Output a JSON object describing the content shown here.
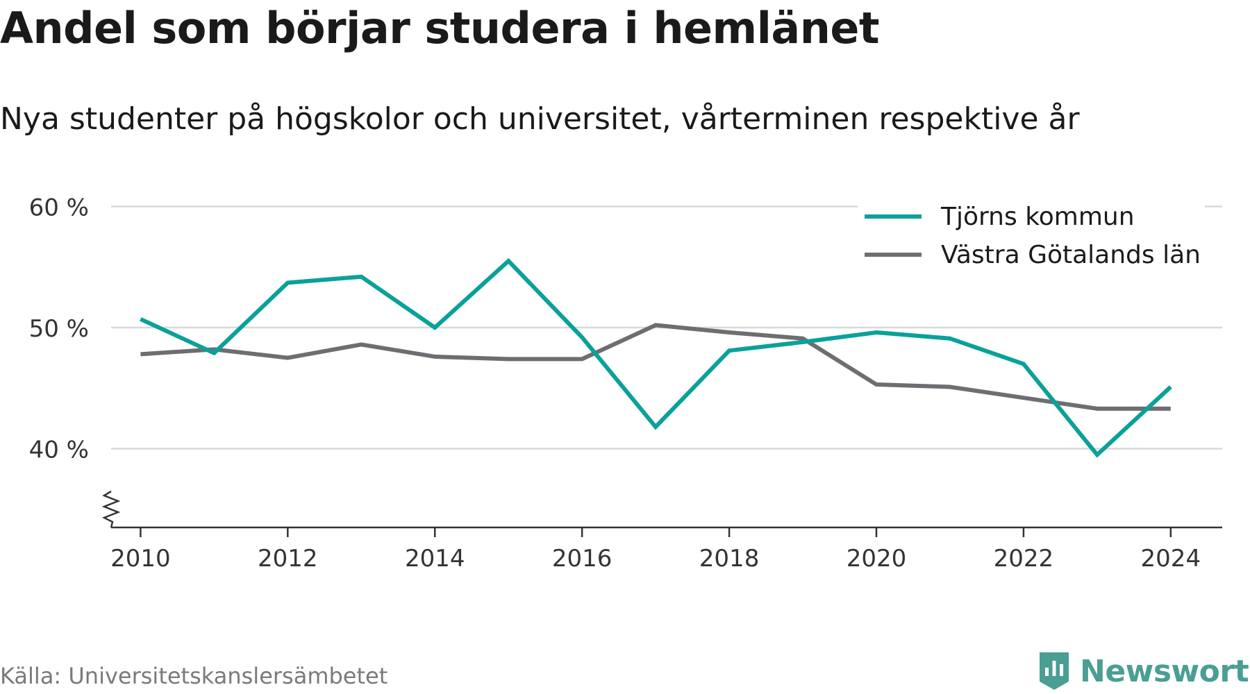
{
  "title": "Andel som börjar studera i hemlänet",
  "subtitle": "Nya studenter på högskolor och universitet, vårterminen respektive år",
  "source": "Källa: Universitetskanslersämbetet",
  "brand": "Newsworthy",
  "colors": {
    "tjorn": "#0aa199",
    "vgl": "#6e6d72",
    "grid": "#d9d9d9",
    "axis": "#333333",
    "brand": "#4a9e93"
  },
  "chart_data": {
    "type": "line",
    "x": [
      2010,
      2011,
      2012,
      2013,
      2014,
      2015,
      2016,
      2017,
      2018,
      2019,
      2020,
      2021,
      2022,
      2023,
      2024
    ],
    "series": [
      {
        "name": "Tjörns kommun",
        "color": "#0aa199",
        "values": [
          50.7,
          47.9,
          53.7,
          54.2,
          50.0,
          55.5,
          49.2,
          41.8,
          48.1,
          48.8,
          49.6,
          49.1,
          47.0,
          39.5,
          45.1
        ]
      },
      {
        "name": "Västra Götalands län",
        "color": "#6e6d72",
        "values": [
          47.8,
          48.2,
          47.5,
          48.6,
          47.6,
          47.4,
          47.4,
          50.2,
          49.6,
          49.1,
          45.3,
          45.1,
          44.2,
          43.3,
          43.3
        ]
      }
    ],
    "xticks": [
      2010,
      2012,
      2014,
      2016,
      2018,
      2020,
      2022,
      2024
    ],
    "xtick_labels": [
      "2010",
      "2012",
      "2014",
      "2016",
      "2018",
      "2020",
      "2022",
      "2024"
    ],
    "yticks": [
      40,
      50,
      60
    ],
    "ytick_labels": [
      "40 %",
      "50 %",
      "60 %"
    ],
    "ylim": [
      33.5,
      61
    ],
    "xlim": [
      2009.6,
      2024.7
    ],
    "y_axis_break": true,
    "grid": true,
    "legend_position": "top-right",
    "xlabel": "",
    "ylabel": ""
  }
}
